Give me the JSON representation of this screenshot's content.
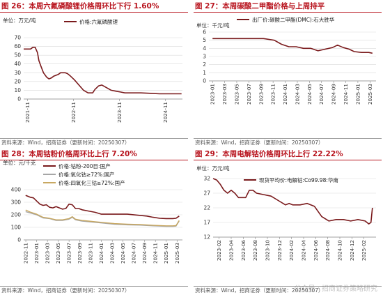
{
  "colors": {
    "title": "#b8141e",
    "series_dark": "#7a1a1c",
    "series_gray": "#a6a6a6",
    "series_gold": "#c8a862",
    "grid": "#d9d9d9"
  },
  "footer_source": "资料来源：Wind，招商证券（更新时间：20250307）",
  "watermark": "公众号 · 招商证券策略研究",
  "chart_data": [
    {
      "title": "图 26：本周六氟磷酸锂价格周环比下行 1.60%",
      "type": "line",
      "unit": "单位：万元/吨",
      "ylim": [
        0,
        70
      ],
      "yticks": [
        0,
        10,
        20,
        30,
        40,
        50,
        60,
        70
      ],
      "xticks": [
        "2021-11",
        "2022-11",
        "2023-11",
        "2024-11"
      ],
      "xrange": [
        2021.75,
        2025.2
      ],
      "tick_pos": [
        2021.833,
        2022.833,
        2023.833,
        2024.833
      ],
      "series": [
        {
          "name": "价格:六氟磷酸锂",
          "color": "#7a1a1c",
          "x": [
            2021.75,
            2021.9,
            2021.95,
            2022.0,
            2022.05,
            2022.08,
            2022.12,
            2022.18,
            2022.25,
            2022.3,
            2022.35,
            2022.4,
            2022.5,
            2022.55,
            2022.65,
            2022.7,
            2022.75,
            2022.85,
            2022.95,
            2023.05,
            2023.15,
            2023.25,
            2023.3,
            2023.38,
            2023.45,
            2023.55,
            2023.65,
            2023.75,
            2023.85,
            2023.95,
            2024.1,
            2024.3,
            2024.5,
            2024.7,
            2024.9,
            2025.05,
            2025.18
          ],
          "values": [
            57,
            57,
            59,
            59,
            53,
            44,
            38,
            30,
            25,
            23,
            24,
            26,
            28,
            30,
            30,
            29,
            27,
            22,
            16,
            10,
            7,
            7,
            11,
            15,
            16,
            13,
            10,
            9,
            8,
            7,
            7,
            7,
            6.5,
            6,
            6,
            6,
            6
          ]
        }
      ]
    },
    {
      "title": "图 27：本周碳酸二甲酯价格与上周持平",
      "type": "line",
      "unit": "单位：千元/吨",
      "ylim": [
        0,
        6
      ],
      "yticks": [
        0,
        1,
        2,
        3,
        4,
        5,
        6
      ],
      "xticks": [
        "2023-01",
        "2023-03",
        "2023-05",
        "2023-07",
        "2023-09",
        "2023-11",
        "2024-01",
        "2024-03",
        "2024-05",
        "2024-07",
        "2024-09",
        "2024-11",
        "2025-01",
        "2025-03"
      ],
      "xrange": [
        2022.95,
        2025.25
      ],
      "tick_pos": [
        2023.0,
        2023.167,
        2023.333,
        2023.5,
        2023.667,
        2023.833,
        2024.0,
        2024.167,
        2024.333,
        2024.5,
        2024.667,
        2024.833,
        2025.0,
        2025.167
      ],
      "series": [
        {
          "name": "出厂价:碳酸二甲酯(DMC):石大胜华",
          "color": "#7a1a1c",
          "x": [
            2023.0,
            2023.3,
            2023.5,
            2023.6,
            2023.7,
            2023.85,
            2023.95,
            2024.05,
            2024.15,
            2024.25,
            2024.35,
            2024.45,
            2024.55,
            2024.65,
            2024.72,
            2024.8,
            2024.88,
            2024.95,
            2025.05,
            2025.15,
            2025.2
          ],
          "values": [
            5.2,
            5.2,
            5.2,
            5.2,
            5.2,
            5.0,
            4.5,
            4.2,
            4.2,
            4.0,
            4.0,
            3.7,
            3.9,
            4.1,
            4.4,
            4.1,
            3.9,
            3.6,
            3.5,
            3.5,
            3.4
          ]
        }
      ]
    },
    {
      "title": "图 28：本周钴粉价格周环比上行 7.20%",
      "type": "line",
      "unit": "单位：元/千克",
      "ylim": [
        0,
        400
      ],
      "yticks": [
        0,
        100,
        200,
        300,
        400
      ],
      "xticks": [
        "2022-11",
        "2023-01",
        "2023-03",
        "2023-05",
        "2023-07",
        "2023-09",
        "2023-11",
        "2024-01",
        "2024-03",
        "2024-05",
        "2024-07",
        "2024-09",
        "2024-11",
        "2025-01",
        "2025-03"
      ],
      "xrange": [
        2022.8,
        2025.25
      ],
      "tick_pos": [
        2022.833,
        2023.0,
        2023.167,
        2023.333,
        2023.5,
        2023.667,
        2023.833,
        2024.0,
        2024.167,
        2024.333,
        2024.5,
        2024.667,
        2024.833,
        2025.0,
        2025.167
      ],
      "series": [
        {
          "name": "价格:钴粉-200目:国产",
          "color": "#7a1a1c",
          "x": [
            2022.83,
            2022.9,
            2022.95,
            2023.0,
            2023.05,
            2023.1,
            2023.15,
            2023.2,
            2023.25,
            2023.3,
            2023.4,
            2023.45,
            2023.5,
            2023.55,
            2023.6,
            2023.65,
            2023.7,
            2023.8,
            2023.9,
            2024.0,
            2024.2,
            2024.4,
            2024.6,
            2024.7,
            2024.8,
            2024.9,
            2025.0,
            2025.1,
            2025.15,
            2025.2
          ],
          "values": [
            355,
            340,
            335,
            310,
            285,
            275,
            280,
            260,
            255,
            265,
            245,
            250,
            285,
            280,
            250,
            250,
            240,
            230,
            220,
            205,
            205,
            205,
            195,
            190,
            180,
            172,
            170,
            170,
            172,
            190
          ]
        },
        {
          "name": "价格:氧化钴≥72%:国产",
          "color": "#a6a6a6",
          "x": [
            2022.83,
            2022.9,
            2023.0,
            2023.1,
            2023.2,
            2023.3,
            2023.4,
            2023.5,
            2023.55,
            2023.6,
            2023.7,
            2023.8,
            2023.9,
            2024.0,
            2024.2,
            2024.4,
            2024.6,
            2024.8,
            2025.0,
            2025.1,
            2025.15,
            2025.2
          ],
          "values": [
            225,
            215,
            200,
            175,
            170,
            155,
            155,
            165,
            180,
            160,
            150,
            145,
            140,
            135,
            125,
            120,
            118,
            112,
            108,
            108,
            110,
            150
          ]
        },
        {
          "name": "价格:四氧化三钴≥72%:国产",
          "color": "#c8a862",
          "x": [
            2022.83,
            2022.9,
            2023.0,
            2023.1,
            2023.2,
            2023.3,
            2023.4,
            2023.5,
            2023.55,
            2023.6,
            2023.7,
            2023.8,
            2023.9,
            2024.0,
            2024.2,
            2024.4,
            2024.6,
            2024.8,
            2025.0,
            2025.1,
            2025.15,
            2025.2
          ],
          "values": [
            238,
            222,
            205,
            180,
            172,
            160,
            160,
            170,
            185,
            165,
            155,
            150,
            145,
            140,
            130,
            125,
            122,
            116,
            112,
            112,
            114,
            155
          ]
        }
      ]
    },
    {
      "title": "图 29：本周电解钴价格周环比上行 22.22%",
      "type": "line",
      "unit": "单位：万元/吨",
      "ylim": [
        12,
        32
      ],
      "yticks": [
        12,
        17,
        22,
        27,
        32
      ],
      "xticks": [
        "2023-02",
        "2023-04",
        "2023-06",
        "2023-08",
        "2023-10",
        "2023-12",
        "2024-02",
        "2024-04",
        "2024-06",
        "2024-08",
        "2024-10",
        "2024-12",
        "2025-02"
      ],
      "xrange": [
        2023.0,
        2025.25
      ],
      "tick_pos": [
        2023.083,
        2023.25,
        2023.417,
        2023.583,
        2023.75,
        2023.917,
        2024.083,
        2024.25,
        2024.417,
        2024.583,
        2024.75,
        2024.917,
        2025.083
      ],
      "series": [
        {
          "name": "现货平均价:电解钴:Co99.98:华南",
          "color": "#7a1a1c",
          "x": [
            2023.0,
            2023.05,
            2023.1,
            2023.15,
            2023.2,
            2023.25,
            2023.3,
            2023.35,
            2023.45,
            2023.5,
            2023.55,
            2023.6,
            2023.7,
            2023.8,
            2023.9,
            2024.0,
            2024.05,
            2024.1,
            2024.2,
            2024.3,
            2024.4,
            2024.5,
            2024.6,
            2024.7,
            2024.8,
            2024.9,
            2025.0,
            2025.1,
            2025.15,
            2025.18,
            2025.2
          ],
          "values": [
            32,
            31.5,
            30,
            28,
            27,
            28,
            27,
            25.5,
            25.5,
            28,
            28,
            27,
            26.5,
            26,
            24.5,
            23,
            23.5,
            23,
            23,
            23.5,
            22.5,
            19,
            17.5,
            18,
            18,
            17.5,
            18,
            17.5,
            16.5,
            17,
            22
          ]
        }
      ]
    }
  ]
}
